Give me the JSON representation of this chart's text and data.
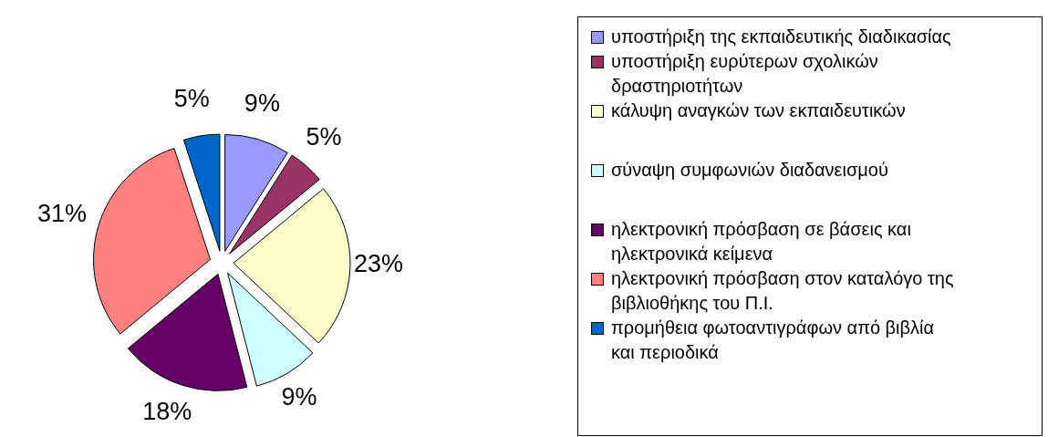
{
  "chart_data": {
    "type": "pie",
    "categories": [
      "υποστήριξη της εκπαιδευτικής διαδικασίας",
      "υποστήριξη ευρύτερων σχολικών δραστηριοτήτων",
      "κάλυψη αναγκών των εκπαιδευτικών",
      "σύναψη συμφωνιών διαδανεισμού",
      "ηλεκτρονική πρόσβαση σε βάσεις και ηλεκτρονικά κείμενα",
      "ηλεκτρονική πρόσβαση στον καταλόγο της βιβλιοθήκης του Π.Ι.",
      "προμήθεια φωτοαντιγράφων από βιβλία και περιοδικά"
    ],
    "values": [
      9,
      5,
      23,
      9,
      18,
      31,
      5
    ],
    "colors": [
      "#9999ff",
      "#993366",
      "#ffffcc",
      "#ccffff",
      "#660066",
      "#ff8080",
      "#0066cc"
    ],
    "value_labels": [
      "9%",
      "5%",
      "23%",
      "9%",
      "18%",
      "31%",
      "5%"
    ],
    "legend": "right"
  }
}
